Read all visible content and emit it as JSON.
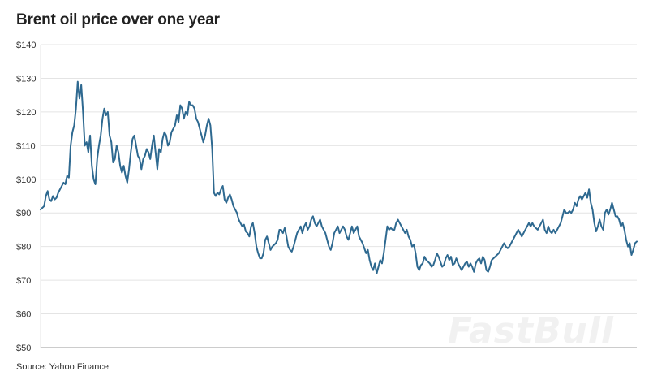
{
  "header": {
    "title": "Brent oil price over one year"
  },
  "footer": {
    "source": "Source: Yahoo Finance"
  },
  "watermark": {
    "text": "FastBull"
  },
  "chart_data": {
    "type": "line",
    "title": "Brent oil price over one year",
    "xlabel": "",
    "ylabel": "",
    "ylim": [
      50,
      140
    ],
    "yticks": [
      50,
      60,
      70,
      80,
      90,
      100,
      110,
      120,
      130,
      140
    ],
    "ytick_labels": [
      "$50",
      "$60",
      "$70",
      "$80",
      "$90",
      "$100",
      "$110",
      "$120",
      "$130",
      "$140"
    ],
    "grid": true,
    "legend": "none",
    "line_color": "#2e6990",
    "series": [
      {
        "values": [
          91,
          91.5,
          92,
          95,
          96.5,
          94,
          93.5,
          95,
          94,
          94.5,
          96,
          97,
          98,
          99,
          98.5,
          101,
          100.5,
          110,
          114,
          116,
          121,
          129,
          124,
          128,
          120,
          110,
          111,
          108,
          113,
          104,
          100,
          98.5,
          106,
          110,
          113,
          118,
          121,
          119,
          120,
          113,
          111,
          105,
          106,
          110,
          108,
          104,
          102,
          104,
          101,
          99,
          103,
          108,
          112,
          113,
          110,
          107,
          106,
          103,
          106,
          107,
          109,
          108,
          106,
          110,
          113,
          108,
          103,
          109,
          108,
          112,
          114,
          113,
          110,
          111,
          114,
          115,
          116,
          119,
          117,
          122,
          121,
          118,
          120,
          119,
          123,
          122,
          122,
          121,
          118,
          117,
          115,
          113,
          111,
          113,
          116,
          118,
          116,
          109,
          96,
          95,
          96,
          95.5,
          97,
          98,
          94,
          93,
          94.5,
          95.5,
          94,
          92,
          91,
          90,
          88,
          87,
          86,
          86.5,
          84.5,
          84,
          83,
          86,
          87,
          84,
          80,
          78,
          76.5,
          76.5,
          78,
          82,
          83,
          81,
          79,
          80,
          80.5,
          81,
          82,
          85,
          85,
          84,
          85.5,
          83,
          80,
          79,
          78.5,
          80,
          82,
          84,
          85,
          86,
          84,
          86,
          87,
          85,
          86,
          88,
          89,
          87,
          86,
          87,
          88,
          86,
          85,
          84,
          82,
          80,
          79,
          81,
          84,
          85,
          86,
          84,
          85,
          86,
          85,
          83,
          82,
          84,
          86,
          84,
          85,
          86,
          83,
          82,
          81,
          79.5,
          78,
          79,
          76,
          74,
          73,
          75,
          72,
          74,
          76,
          75,
          78,
          82,
          86,
          85,
          85.5,
          85,
          85,
          87,
          88,
          87,
          86,
          85,
          84,
          85,
          83,
          82,
          80,
          80.5,
          78,
          74,
          73,
          74.5,
          75,
          77,
          76,
          75.5,
          75,
          74,
          74.5,
          76,
          78,
          77,
          75.5,
          74,
          74.5,
          76.5,
          77.5,
          76,
          77,
          74.5,
          75,
          76.5,
          75,
          74,
          73,
          74,
          75,
          75.5,
          74,
          75,
          74,
          72.5,
          75,
          76,
          76.5,
          75,
          77,
          76,
          73,
          72.5,
          74,
          76,
          76.5,
          77,
          77.5,
          78,
          79,
          80,
          81,
          80,
          79.5,
          80,
          81,
          82,
          83,
          84,
          85,
          84,
          83,
          84,
          85,
          86,
          87,
          86,
          87,
          86,
          85.5,
          85,
          86,
          87,
          88,
          85,
          84,
          86,
          84.5,
          84,
          85,
          84,
          85,
          86,
          87,
          89,
          91,
          90,
          90,
          90.5,
          90,
          91,
          93,
          92,
          94,
          95,
          94,
          95,
          96,
          94.5,
          97,
          93,
          91,
          87,
          84.5,
          86,
          88,
          86,
          85,
          90,
          91,
          89.5,
          91,
          93,
          91,
          89,
          89,
          88,
          86,
          87,
          85,
          82,
          80,
          81,
          77.5,
          79,
          81,
          81.5
        ]
      }
    ]
  }
}
